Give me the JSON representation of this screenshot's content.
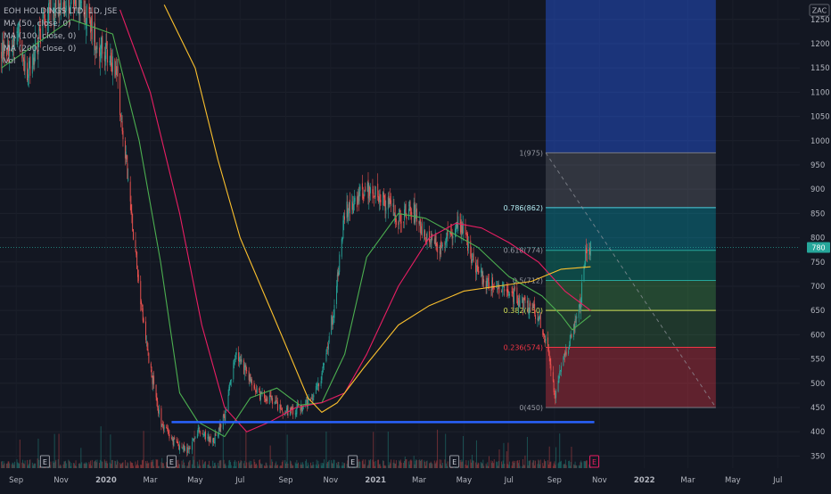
{
  "legend": {
    "title": "EOH HOLDINGS LTD, 1D, JSE",
    "ma50": "MA (50, close, 0)",
    "ma100": "MA (100, close, 0)",
    "ma200": "MA (200, close, 0)",
    "vol": "Vol"
  },
  "currency": "ZAC",
  "last_price": "780",
  "colors": {
    "background": "#131722",
    "up": "#26a69a",
    "down": "#ef5350",
    "ma50": "#4caf50",
    "ma100": "#e91e63",
    "ma200": "#fbc02d",
    "support": "#2962ff",
    "last_price_line": "#26a69a"
  },
  "chart_data": {
    "type": "candlestick",
    "x_ticks": [
      "Sep",
      "Nov",
      "2020",
      "Mar",
      "May",
      "Jul",
      "Sep",
      "Nov",
      "2021",
      "Mar",
      "May",
      "Jul",
      "Sep",
      "Nov",
      "2022",
      "Mar",
      "May",
      "Jul"
    ],
    "y_ticks": [
      350,
      400,
      450,
      500,
      550,
      600,
      650,
      700,
      750,
      800,
      850,
      900,
      950,
      1000,
      1050,
      1100,
      1150,
      1200,
      1250
    ],
    "y_range": [
      325,
      1290
    ],
    "x_range": [
      "2019-08-10",
      "2022-07-31"
    ],
    "price_path": [
      [
        "2019-08-12",
        1180
      ],
      [
        "2019-09-05",
        1220
      ],
      [
        "2019-09-15",
        1120
      ],
      [
        "2019-10-10",
        1260
      ],
      [
        "2019-11-05",
        1290
      ],
      [
        "2019-12-01",
        1280
      ],
      [
        "2019-12-20",
        1200
      ],
      [
        "2020-01-15",
        1150
      ],
      [
        "2020-02-01",
        900
      ],
      [
        "2020-02-15",
        700
      ],
      [
        "2020-02-28",
        550
      ],
      [
        "2020-03-15",
        420
      ],
      [
        "2020-04-01",
        380
      ],
      [
        "2020-04-20",
        360
      ],
      [
        "2020-05-05",
        400
      ],
      [
        "2020-05-25",
        380
      ],
      [
        "2020-06-10",
        430
      ],
      [
        "2020-06-25",
        560
      ],
      [
        "2020-07-10",
        520
      ],
      [
        "2020-07-25",
        480
      ],
      [
        "2020-08-15",
        460
      ],
      [
        "2020-09-01",
        440
      ],
      [
        "2020-09-20",
        450
      ],
      [
        "2020-10-05",
        460
      ],
      [
        "2020-10-20",
        520
      ],
      [
        "2020-11-05",
        650
      ],
      [
        "2020-11-20",
        850
      ],
      [
        "2020-12-05",
        880
      ],
      [
        "2020-12-20",
        900
      ],
      [
        "2021-01-10",
        880
      ],
      [
        "2021-02-01",
        840
      ],
      [
        "2021-02-20",
        860
      ],
      [
        "2021-03-10",
        800
      ],
      [
        "2021-03-25",
        780
      ],
      [
        "2021-04-10",
        800
      ],
      [
        "2021-04-25",
        840
      ],
      [
        "2021-05-10",
        760
      ],
      [
        "2021-05-25",
        720
      ],
      [
        "2021-06-10",
        700
      ],
      [
        "2021-06-25",
        690
      ],
      [
        "2021-07-10",
        680
      ],
      [
        "2021-07-25",
        660
      ],
      [
        "2021-08-10",
        640
      ],
      [
        "2021-08-25",
        560
      ],
      [
        "2021-09-01",
        470
      ],
      [
        "2021-09-10",
        540
      ],
      [
        "2021-09-25",
        600
      ],
      [
        "2021-10-05",
        650
      ],
      [
        "2021-10-12",
        760
      ],
      [
        "2021-10-20",
        780
      ]
    ],
    "moving_averages": [
      {
        "name": "MA (50, close, 0)",
        "color": "#4caf50",
        "points": [
          [
            "2019-08-12",
            1150
          ],
          [
            "2019-11-15",
            1250
          ],
          [
            "2020-01-10",
            1220
          ],
          [
            "2020-02-15",
            1000
          ],
          [
            "2020-03-15",
            750
          ],
          [
            "2020-04-10",
            480
          ],
          [
            "2020-05-05",
            420
          ],
          [
            "2020-06-10",
            390
          ],
          [
            "2020-07-15",
            470
          ],
          [
            "2020-08-20",
            490
          ],
          [
            "2020-09-20",
            455
          ],
          [
            "2020-10-20",
            460
          ],
          [
            "2020-11-20",
            560
          ],
          [
            "2020-12-20",
            760
          ],
          [
            "2021-02-01",
            850
          ],
          [
            "2021-03-10",
            840
          ],
          [
            "2021-04-15",
            810
          ],
          [
            "2021-05-20",
            780
          ],
          [
            "2021-07-01",
            720
          ],
          [
            "2021-08-15",
            680
          ],
          [
            "2021-09-10",
            640
          ],
          [
            "2021-09-25",
            610
          ],
          [
            "2021-10-20",
            640
          ]
        ]
      },
      {
        "name": "MA (100, close, 0)",
        "color": "#e91e63",
        "points": [
          [
            "2020-01-20",
            1270
          ],
          [
            "2020-03-01",
            1100
          ],
          [
            "2020-04-10",
            850
          ],
          [
            "2020-05-10",
            620
          ],
          [
            "2020-06-10",
            450
          ],
          [
            "2020-07-10",
            400
          ],
          [
            "2020-08-10",
            420
          ],
          [
            "2020-09-15",
            450
          ],
          [
            "2020-10-20",
            460
          ],
          [
            "2020-11-20",
            480
          ],
          [
            "2020-12-20",
            560
          ],
          [
            "2021-02-01",
            700
          ],
          [
            "2021-03-15",
            800
          ],
          [
            "2021-04-20",
            830
          ],
          [
            "2021-05-25",
            820
          ],
          [
            "2021-07-01",
            790
          ],
          [
            "2021-08-10",
            750
          ],
          [
            "2021-09-15",
            690
          ],
          [
            "2021-10-20",
            650
          ]
        ]
      },
      {
        "name": "MA (200, close, 0)",
        "color": "#fbc02d",
        "points": [
          [
            "2020-03-20",
            1280
          ],
          [
            "2020-05-01",
            1150
          ],
          [
            "2020-06-01",
            960
          ],
          [
            "2020-07-01",
            800
          ],
          [
            "2020-08-15",
            640
          ],
          [
            "2020-10-01",
            470
          ],
          [
            "2020-10-20",
            440
          ],
          [
            "2020-11-10",
            460
          ],
          [
            "2020-12-15",
            530
          ],
          [
            "2021-02-01",
            620
          ],
          [
            "2021-03-15",
            660
          ],
          [
            "2021-05-01",
            690
          ],
          [
            "2021-06-15",
            700
          ],
          [
            "2021-08-01",
            710
          ],
          [
            "2021-09-10",
            735
          ],
          [
            "2021-10-20",
            740
          ]
        ]
      }
    ],
    "support_line": {
      "from": [
        "2020-03-30",
        420
      ],
      "to": [
        "2021-10-25",
        420
      ]
    },
    "last_price": 780,
    "fibonacci": {
      "x_start": "2021-08-20",
      "x_end": "2022-04-08",
      "levels": [
        {
          "label": "0(450)",
          "value": 450
        },
        {
          "label": "0.236(574)",
          "value": 574
        },
        {
          "label": "0.382(650)",
          "value": 650
        },
        {
          "label": "0.5(712)",
          "value": 712
        },
        {
          "label": "0.618(774)",
          "value": 774
        },
        {
          "label": "0.786(862)",
          "value": 862
        },
        {
          "label": "1(975)",
          "value": 975
        }
      ],
      "zones": [
        {
          "from": 450,
          "to": 574,
          "color": "#f23645",
          "alpha": 0.35
        },
        {
          "from": 574,
          "to": 650,
          "color": "#4caf50",
          "alpha": 0.22
        },
        {
          "from": 650,
          "to": 712,
          "color": "#4caf50",
          "alpha": 0.32
        },
        {
          "from": 712,
          "to": 774,
          "color": "#089981",
          "alpha": 0.38
        },
        {
          "from": 774,
          "to": 862,
          "color": "#00bcd4",
          "alpha": 0.3
        },
        {
          "from": 862,
          "to": 975,
          "color": "#787b86",
          "alpha": 0.3
        },
        {
          "from": 975,
          "to": 1290,
          "color": "#2962ff",
          "alpha": 0.4
        }
      ]
    },
    "dividend_markers": [
      "2019-10-10",
      "2020-03-30",
      "2020-12-01",
      "2021-04-18",
      "2021-10-25"
    ],
    "dividend_label": "E"
  }
}
